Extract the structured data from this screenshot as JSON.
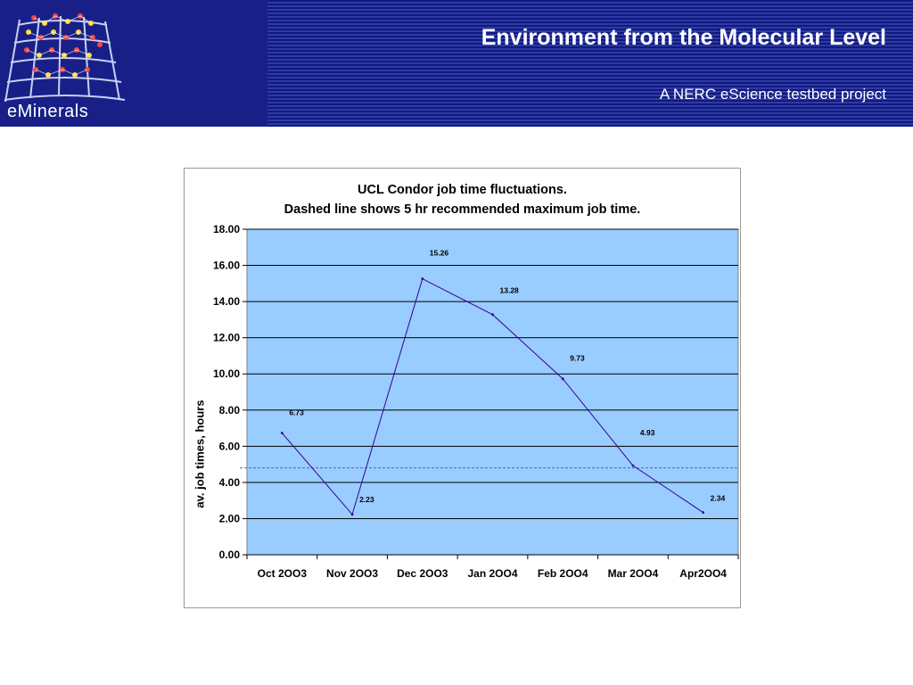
{
  "header": {
    "logo_text": "eMinerals",
    "title": "Environment from the Molecular Level",
    "subtitle": "A NERC eScience testbed project"
  },
  "colors": {
    "banner": "#1b2590",
    "plot_area": "#99ccff",
    "series_line": "#330099",
    "gridline": "#000000",
    "dashed_line": "#5a6b9a"
  },
  "chart_data": {
    "type": "line",
    "title_line1": "UCL Condor job time fluctuations.",
    "title_line2": "Dashed line shows 5 hr recommended maximum job time.",
    "xlabel": "",
    "ylabel": "av. job times, hours",
    "categories": [
      "Oct 2OO3",
      "Nov 2OO3",
      "Dec 2OO3",
      "Jan 2OO4",
      "Feb 2OO4",
      "Mar 2OO4",
      "Apr2OO4"
    ],
    "values": [
      6.73,
      2.23,
      15.26,
      13.28,
      9.73,
      4.93,
      2.34
    ],
    "data_labels": [
      "6.73",
      "2.23",
      "15.26",
      "13.28",
      "9.73",
      "4.93",
      "2.34"
    ],
    "ylim": [
      0,
      18
    ],
    "yticks": [
      "0.00",
      "2.00",
      "4.00",
      "6.00",
      "8.00",
      "10.00",
      "12.00",
      "14.00",
      "16.00",
      "18.00"
    ],
    "reference_line": 4.8,
    "grid": true,
    "legend": "none"
  }
}
